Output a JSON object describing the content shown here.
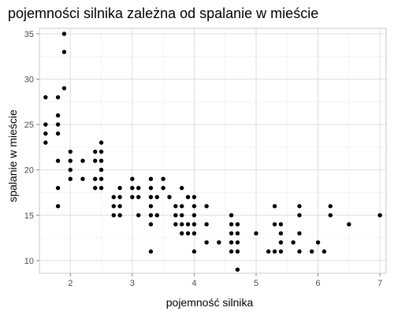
{
  "chart_data": {
    "type": "scatter",
    "title": "pojemności silnika zależna od spalanie w mieście",
    "xlabel": "pojemność silnika",
    "ylabel": "spalanie w mieście",
    "xlim": [
      1.5,
      7.1
    ],
    "ylim": [
      8.6,
      35.6
    ],
    "x_ticks": [
      2,
      3,
      4,
      5,
      6,
      7
    ],
    "y_ticks": [
      10,
      15,
      20,
      25,
      30,
      35
    ],
    "grid": true,
    "point_color": "#000000",
    "points": [
      [
        1.6,
        28
      ],
      [
        1.6,
        25
      ],
      [
        1.6,
        24
      ],
      [
        1.6,
        23
      ],
      [
        1.8,
        28
      ],
      [
        1.8,
        26
      ],
      [
        1.8,
        25
      ],
      [
        1.8,
        24
      ],
      [
        1.8,
        21
      ],
      [
        1.8,
        18
      ],
      [
        1.8,
        16
      ],
      [
        1.9,
        35
      ],
      [
        1.9,
        33
      ],
      [
        1.9,
        29
      ],
      [
        2.0,
        22
      ],
      [
        2.0,
        21
      ],
      [
        2.0,
        20
      ],
      [
        2.0,
        19
      ],
      [
        2.2,
        21
      ],
      [
        2.2,
        19
      ],
      [
        2.4,
        22
      ],
      [
        2.4,
        21
      ],
      [
        2.4,
        19
      ],
      [
        2.4,
        18
      ],
      [
        2.5,
        23
      ],
      [
        2.5,
        22
      ],
      [
        2.5,
        21
      ],
      [
        2.5,
        20
      ],
      [
        2.5,
        19
      ],
      [
        2.5,
        18
      ],
      [
        2.7,
        17
      ],
      [
        2.7,
        16
      ],
      [
        2.7,
        15
      ],
      [
        2.8,
        18
      ],
      [
        2.8,
        17
      ],
      [
        2.8,
        16
      ],
      [
        2.8,
        15
      ],
      [
        3.0,
        19
      ],
      [
        3.0,
        18
      ],
      [
        3.0,
        17
      ],
      [
        3.1,
        18
      ],
      [
        3.1,
        17
      ],
      [
        3.1,
        15
      ],
      [
        3.3,
        19
      ],
      [
        3.3,
        18
      ],
      [
        3.3,
        17
      ],
      [
        3.3,
        16
      ],
      [
        3.3,
        15
      ],
      [
        3.3,
        14
      ],
      [
        3.3,
        11
      ],
      [
        3.4,
        17
      ],
      [
        3.4,
        15
      ],
      [
        3.5,
        19
      ],
      [
        3.5,
        18
      ],
      [
        3.6,
        17
      ],
      [
        3.7,
        16
      ],
      [
        3.7,
        15
      ],
      [
        3.7,
        14
      ],
      [
        3.8,
        18
      ],
      [
        3.8,
        16
      ],
      [
        3.8,
        15
      ],
      [
        3.8,
        14
      ],
      [
        3.8,
        13
      ],
      [
        3.9,
        17
      ],
      [
        3.9,
        14
      ],
      [
        3.9,
        13
      ],
      [
        4.0,
        17
      ],
      [
        4.0,
        16
      ],
      [
        4.0,
        15
      ],
      [
        4.0,
        14
      ],
      [
        4.0,
        13
      ],
      [
        4.0,
        11
      ],
      [
        4.2,
        16
      ],
      [
        4.2,
        14
      ],
      [
        4.2,
        12
      ],
      [
        4.4,
        12
      ],
      [
        4.6,
        15
      ],
      [
        4.6,
        14
      ],
      [
        4.6,
        13
      ],
      [
        4.6,
        12
      ],
      [
        4.6,
        11
      ],
      [
        4.7,
        14
      ],
      [
        4.7,
        13
      ],
      [
        4.7,
        12
      ],
      [
        4.7,
        11
      ],
      [
        4.7,
        9
      ],
      [
        5.0,
        13
      ],
      [
        5.2,
        11
      ],
      [
        5.3,
        16
      ],
      [
        5.3,
        14
      ],
      [
        5.3,
        11
      ],
      [
        5.4,
        14
      ],
      [
        5.4,
        13
      ],
      [
        5.4,
        12
      ],
      [
        5.4,
        11
      ],
      [
        5.6,
        12
      ],
      [
        5.7,
        16
      ],
      [
        5.7,
        15
      ],
      [
        5.7,
        13
      ],
      [
        5.7,
        11
      ],
      [
        5.9,
        11
      ],
      [
        6.0,
        12
      ],
      [
        6.1,
        11
      ],
      [
        6.2,
        16
      ],
      [
        6.2,
        15
      ],
      [
        6.5,
        14
      ],
      [
        7.0,
        15
      ]
    ]
  }
}
